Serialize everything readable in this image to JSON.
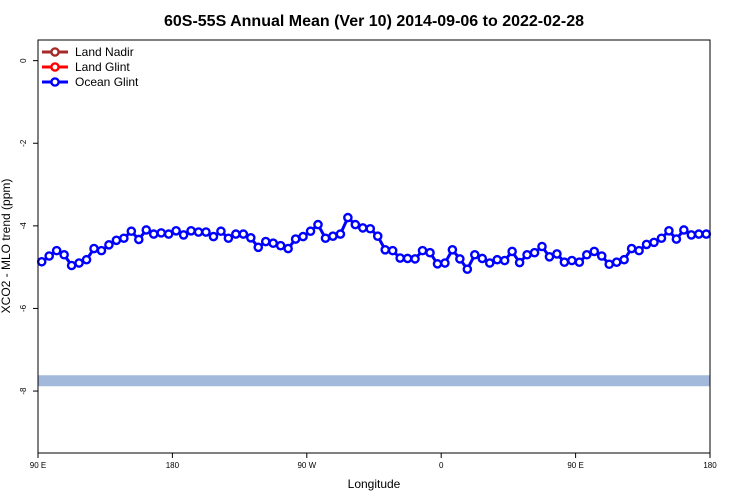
{
  "chart_data": {
    "type": "line",
    "title": "60S-55S Annual Mean (Ver 10)   2014-09-06 to 2022-02-28",
    "xlabel": "Longitude",
    "ylabel": "XCO2 - MLO trend (ppm)",
    "xlim": [
      0,
      100
    ],
    "ylim": [
      -9.5,
      0.5
    ],
    "x_ticks": [
      {
        "pos": 0,
        "label": "90 E"
      },
      {
        "pos": 20,
        "label": "180"
      },
      {
        "pos": 40,
        "label": "90 W"
      },
      {
        "pos": 60,
        "label": "0"
      },
      {
        "pos": 80,
        "label": "90 E"
      },
      {
        "pos": 100,
        "label": "180"
      }
    ],
    "y_ticks": [
      0,
      -2,
      -4,
      -6,
      -8
    ],
    "grid": false,
    "legend_position": "top-left",
    "legend": [
      {
        "label": "Land Nadir",
        "color": "#a52a2a"
      },
      {
        "label": "Land Glint",
        "color": "#ff0000"
      },
      {
        "label": "Ocean Glint",
        "color": "#0000ff"
      }
    ],
    "band": {
      "y": -7.75,
      "color": "#a3b9dc"
    },
    "series": [
      {
        "name": "Ocean Glint",
        "color": "#0000ff",
        "values": [
          -4.87,
          -4.73,
          -4.6,
          -4.7,
          -4.96,
          -4.9,
          -4.82,
          -4.55,
          -4.6,
          -4.46,
          -4.35,
          -4.3,
          -4.13,
          -4.33,
          -4.1,
          -4.2,
          -4.17,
          -4.2,
          -4.12,
          -4.22,
          -4.12,
          -4.15,
          -4.15,
          -4.26,
          -4.13,
          -4.3,
          -4.2,
          -4.2,
          -4.29,
          -4.52,
          -4.38,
          -4.42,
          -4.48,
          -4.55,
          -4.32,
          -4.26,
          -4.13,
          -3.97,
          -4.3,
          -4.25,
          -4.2,
          -3.8,
          -3.97,
          -4.05,
          -4.07,
          -4.25,
          -4.58,
          -4.6,
          -4.78,
          -4.79,
          -4.8,
          -4.6,
          -4.65,
          -4.92,
          -4.9,
          -4.58,
          -4.8,
          -5.05,
          -4.7,
          -4.79,
          -4.9,
          -4.82,
          -4.84,
          -4.62,
          -4.89,
          -4.7,
          -4.65,
          -4.5,
          -4.75,
          -4.68,
          -4.88,
          -4.84,
          -4.88,
          -4.7,
          -4.62,
          -4.73,
          -4.93,
          -4.88,
          -4.82,
          -4.55,
          -4.6,
          -4.45,
          -4.4,
          -4.3,
          -4.12,
          -4.32,
          -4.1,
          -4.22,
          -4.2,
          -4.2
        ]
      }
    ]
  }
}
